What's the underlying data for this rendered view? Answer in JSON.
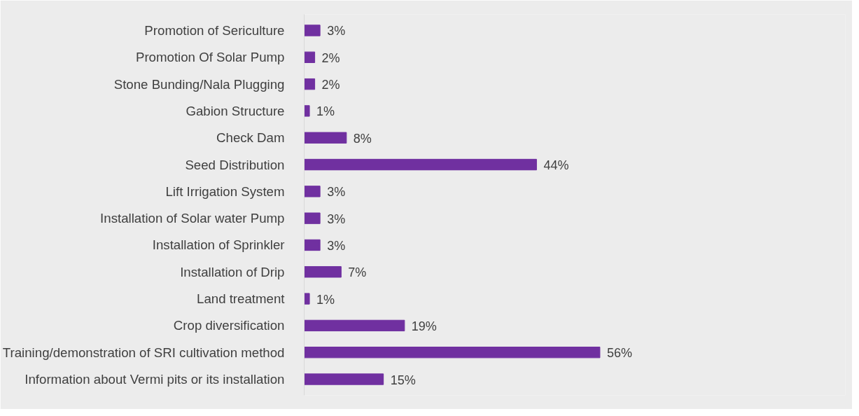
{
  "chart_data": {
    "type": "bar",
    "orientation": "horizontal",
    "color": "#7030a0",
    "categories": [
      "Promotion of Sericulture",
      "Promotion Of Solar Pump",
      "Stone Bunding/Nala Plugging",
      "Gabion Structure",
      "Check Dam",
      "Seed Distribution",
      "Lift Irrigation System",
      "Installation of Solar water Pump",
      "Installation of Sprinkler",
      "Installation of Drip",
      "Land treatment",
      "Crop diversification",
      "Training/demonstration of SRI cultivation method",
      "Information about Vermi pits or its installation"
    ],
    "values": [
      3,
      2,
      2,
      1,
      8,
      44,
      3,
      3,
      3,
      7,
      1,
      19,
      56,
      15
    ],
    "value_labels": [
      "3%",
      "2%",
      "2%",
      "1%",
      "8%",
      "44%",
      "3%",
      "3%",
      "3%",
      "7%",
      "1%",
      "19%",
      "56%",
      "15%"
    ],
    "grid": false
  }
}
